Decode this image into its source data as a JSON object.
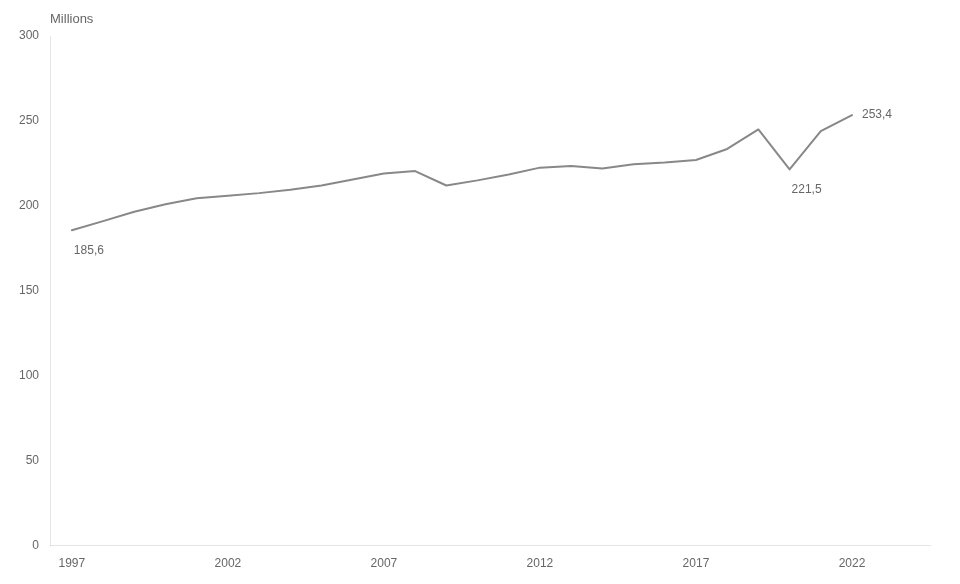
{
  "chart_data": {
    "type": "line",
    "x": [
      1997,
      1998,
      1999,
      2000,
      2001,
      2002,
      2003,
      2004,
      2005,
      2006,
      2007,
      2008,
      2009,
      2010,
      2011,
      2012,
      2013,
      2014,
      2015,
      2016,
      2017,
      2018,
      2019,
      2020,
      2021,
      2022
    ],
    "values": [
      185.6,
      191.0,
      196.5,
      201.0,
      204.5,
      206.0,
      207.5,
      209.5,
      212.0,
      215.5,
      219.0,
      220.5,
      212.0,
      215.0,
      218.5,
      222.5,
      223.5,
      222.0,
      224.5,
      225.5,
      227.0,
      233.5,
      245.0,
      221.5,
      244.0,
      253.4
    ],
    "color": "#888888",
    "xlim": [
      1996.3,
      2024.5
    ],
    "xticks": [
      1997,
      2002,
      2007,
      2012,
      2017,
      2022
    ],
    "ylim": [
      0,
      300
    ],
    "yticks": [
      0,
      50,
      100,
      150,
      200,
      250,
      300
    ],
    "ylabel": "Millions",
    "grid": false,
    "annotations": [
      {
        "text": "185,6",
        "x": 1997,
        "y": 185.6
      },
      {
        "text": "221,5",
        "x": 2020,
        "y": 221.5
      },
      {
        "text": "253,4",
        "x": 2022,
        "y": 253.4
      }
    ]
  }
}
